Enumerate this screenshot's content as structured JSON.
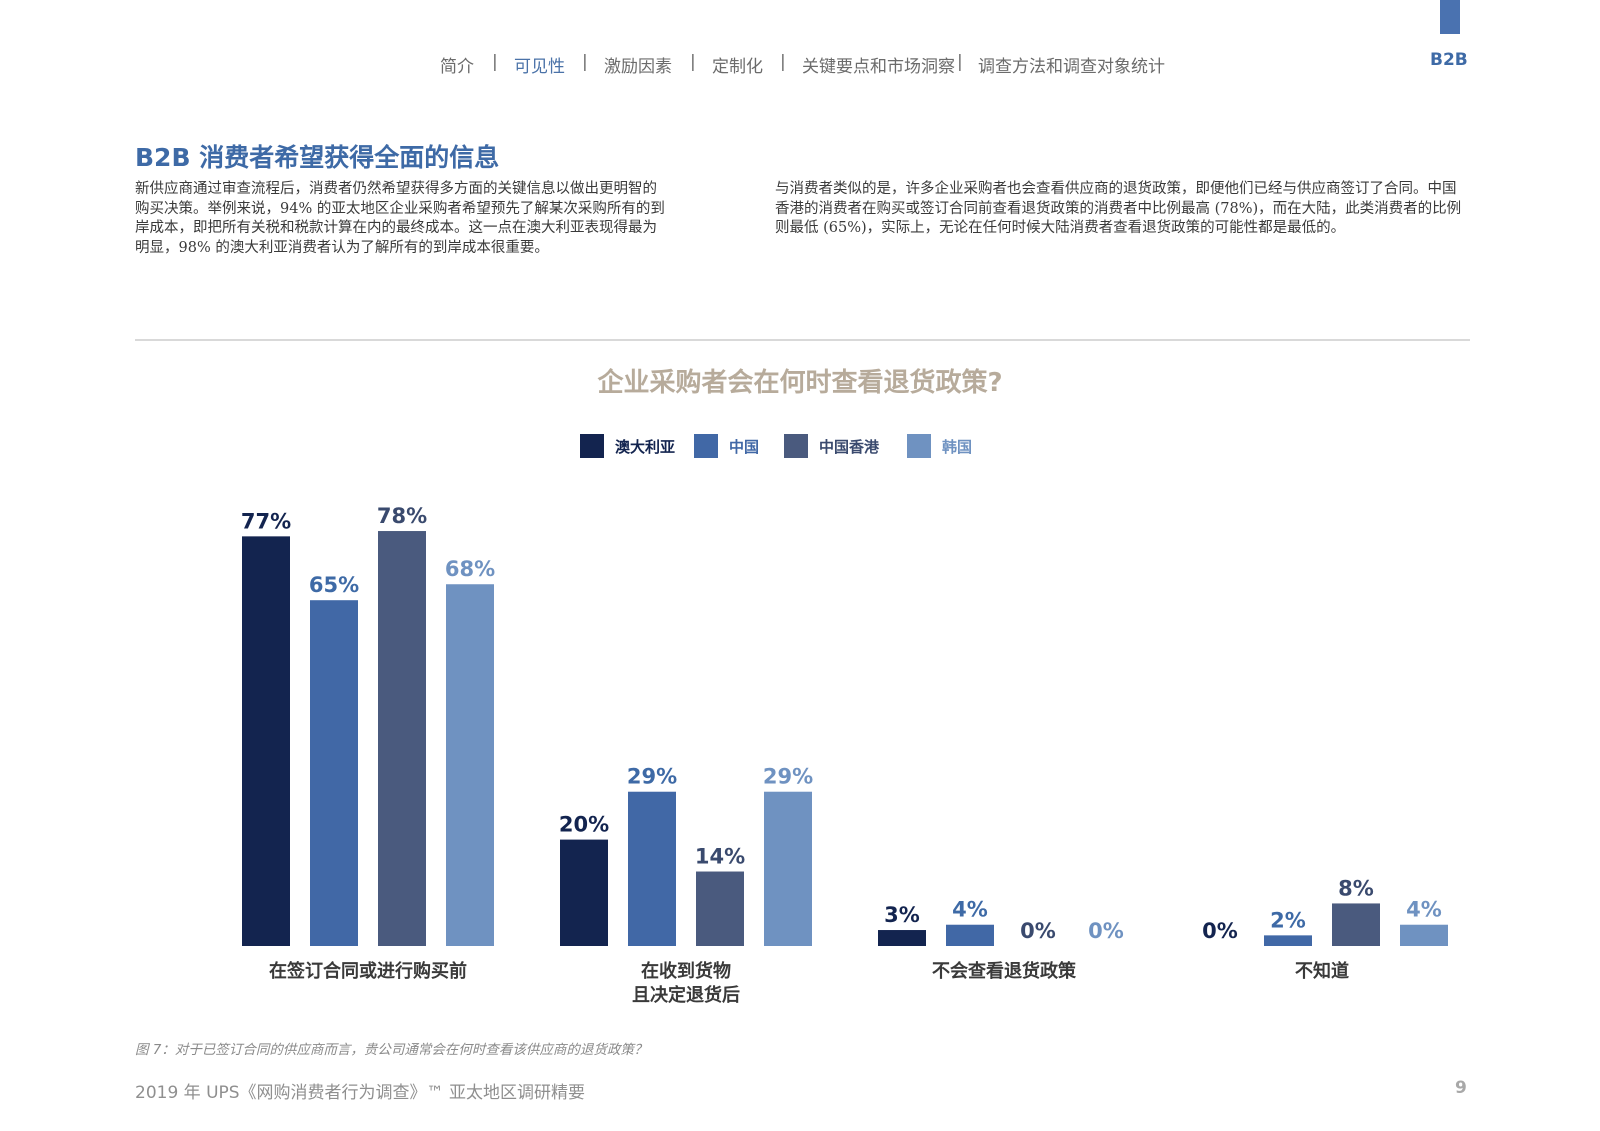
{
  "nav": {
    "items": [
      "简介",
      "可见性",
      "激励因素",
      "定制化",
      "关键要点和市场洞察",
      "调查方法和调查对象统计"
    ],
    "active_index": 1,
    "separator": "|",
    "section_tag": "B2B"
  },
  "section": {
    "heading": "B2B 消费者希望获得全面的信息",
    "paragraph_left": "新供应商通过审查流程后，消费者仍然希望获得多方面的关键信息以做出更明智的购买决策。举例来说，94% 的亚太地区企业采购者希望预先了解某次采购所有的到岸成本，即把所有关税和税款计算在内的最终成本。这一点在澳大利亚表现得最为明显，98% 的澳大利亚消费者认为了解所有的到岸成本很重要。",
    "paragraph_right": "与消费者类似的是，许多企业采购者也会查看供应商的退货政策，即便他们已经与供应商签订了合同。中国香港的消费者在购买或签订合同前查看退货政策的消费者中比例最高 (78%)，而在大陆，此类消费者的比例则最低 (65%)，实际上，无论在任何时候大陆消费者查看退货政策的可能性都是最低的。"
  },
  "chart_data": {
    "type": "bar",
    "title": "企业采购者会在何时查看退货政策?",
    "categories": [
      [
        "在签订合同或进行购买前"
      ],
      [
        "在收到货物",
        "且决定退货后"
      ],
      [
        "不会查看退货政策"
      ],
      [
        "不知道"
      ]
    ],
    "series": [
      {
        "name": "澳大利亚",
        "color": "#13244f",
        "values": [
          77,
          20,
          3,
          0
        ]
      },
      {
        "name": "中国",
        "color": "#4168a6",
        "values": [
          65,
          29,
          4,
          2
        ]
      },
      {
        "name": "中国香港",
        "color": "#4a5a7e",
        "values": [
          78,
          14,
          0,
          8
        ]
      },
      {
        "name": "韩国",
        "color": "#6f92c1",
        "values": [
          68,
          29,
          0,
          4
        ]
      }
    ],
    "ylim": [
      0,
      100
    ],
    "value_suffix": "%",
    "legend_position": "top",
    "grid": false
  },
  "caption": "图 7：对于已签订合同的供应商而言，贵公司通常会在何时查看该供应商的退货政策？",
  "footer": {
    "text": "2019 年 UPS《网购消费者行为调查》™ 亚太地区调研精要",
    "page_number": "9"
  },
  "colors": {
    "accent": "#3e6aa6",
    "chart_title": "#b7ab9b"
  }
}
